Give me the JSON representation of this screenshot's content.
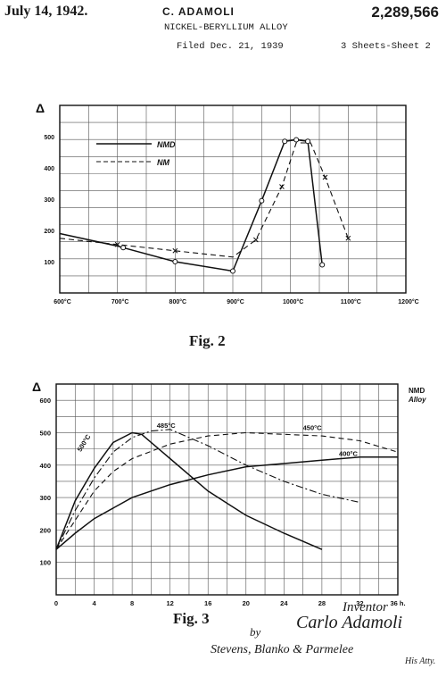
{
  "header": {
    "date": "July 14, 1942.",
    "inventor": "C. ADAMOLI",
    "patent_number": "2,289,566",
    "title": "NICKEL-BERYLLIUM ALLOY",
    "filed": "Filed Dec. 21, 1939",
    "sheets": "3 Sheets-Sheet 2"
  },
  "fig2_label": "Fig. 2",
  "fig3_label": "Fig. 3",
  "signature": {
    "inventor_label": "Inventor",
    "inventor_name": "Carlo Adamoli",
    "by": "by",
    "attorneys": "Stevens, Blanko & Parmelee",
    "his_atty": "His Atty."
  },
  "chart_data": [
    {
      "type": "line",
      "ylabel": "Δ",
      "xlim": [
        600,
        1200
      ],
      "ylim": [
        0,
        600
      ],
      "x_ticks": [
        600,
        700,
        800,
        900,
        1000,
        1100,
        1200
      ],
      "x_tick_labels": [
        "600°C",
        "700°C",
        "800°C",
        "900°C",
        "1000°C",
        "1100°C",
        "1200°C"
      ],
      "y_ticks": [
        100,
        200,
        300,
        400,
        500
      ],
      "y_tick_labels": [
        "100",
        "200",
        "300",
        "400",
        "500"
      ],
      "grid": true,
      "legend_position": "upper-left",
      "series": [
        {
          "name": "NMD",
          "style": "solid",
          "marker": "circle",
          "points": [
            [
              600,
              190
            ],
            [
              700,
              150
            ],
            [
              710,
              145
            ],
            [
              800,
              100
            ],
            [
              900,
              70
            ],
            [
              950,
              295
            ],
            [
              990,
              485
            ],
            [
              1010,
              490
            ],
            [
              1030,
              485
            ],
            [
              1055,
              90
            ]
          ],
          "marker_points": [
            [
              710,
              145
            ],
            [
              800,
              100
            ],
            [
              900,
              70
            ],
            [
              950,
              295
            ],
            [
              990,
              485
            ],
            [
              1010,
              490
            ],
            [
              1030,
              485
            ],
            [
              1055,
              90
            ]
          ]
        },
        {
          "name": "NM",
          "style": "dashed",
          "marker": "cross",
          "points": [
            [
              600,
              175
            ],
            [
              700,
              155
            ],
            [
              800,
              135
            ],
            [
              900,
              115
            ],
            [
              940,
              170
            ],
            [
              985,
              340
            ],
            [
              1010,
              480
            ],
            [
              1035,
              480
            ],
            [
              1060,
              370
            ],
            [
              1100,
              175
            ]
          ],
          "marker_points": [
            [
              700,
              155
            ],
            [
              800,
              135
            ],
            [
              940,
              170
            ],
            [
              985,
              340
            ],
            [
              1060,
              370
            ],
            [
              1100,
              175
            ]
          ]
        }
      ]
    },
    {
      "type": "line",
      "ylabel": "Δ",
      "xlim": [
        0,
        36
      ],
      "ylim": [
        0,
        650
      ],
      "x_ticks": [
        0,
        4,
        8,
        12,
        16,
        20,
        24,
        28,
        32,
        36
      ],
      "x_tick_labels": [
        "0",
        "4",
        "8",
        "12",
        "16",
        "20",
        "24",
        "28",
        "32",
        "36 h."
      ],
      "y_ticks": [
        100,
        200,
        300,
        400,
        500,
        600
      ],
      "y_tick_labels": [
        "100",
        "200",
        "300",
        "400",
        "500",
        "600"
      ],
      "grid": true,
      "corner_label": "NMD",
      "corner_label_sub": "Alloy",
      "series": [
        {
          "name": "500°C",
          "style": "solid",
          "points": [
            [
              0,
              140
            ],
            [
              2,
              290
            ],
            [
              4,
              390
            ],
            [
              6,
              470
            ],
            [
              8,
              500
            ],
            [
              9,
              495
            ],
            [
              12,
              420
            ],
            [
              16,
              320
            ],
            [
              20,
              245
            ],
            [
              24,
              190
            ],
            [
              28,
              140
            ]
          ]
        },
        {
          "name": "485°C",
          "style": "dash-dot",
          "points": [
            [
              0,
              140
            ],
            [
              2,
              260
            ],
            [
              4,
              360
            ],
            [
              6,
              440
            ],
            [
              8,
              485
            ],
            [
              10,
              505
            ],
            [
              12,
              510
            ],
            [
              16,
              460
            ],
            [
              20,
              400
            ],
            [
              24,
              350
            ],
            [
              28,
              310
            ],
            [
              32,
              285
            ]
          ]
        },
        {
          "name": "450°C",
          "style": "dashed",
          "points": [
            [
              0,
              140
            ],
            [
              2,
              230
            ],
            [
              4,
              320
            ],
            [
              6,
              380
            ],
            [
              8,
              420
            ],
            [
              12,
              465
            ],
            [
              16,
              490
            ],
            [
              20,
              500
            ],
            [
              24,
              495
            ],
            [
              28,
              490
            ],
            [
              32,
              475
            ],
            [
              36,
              440
            ]
          ]
        },
        {
          "name": "400°C",
          "style": "solid",
          "points": [
            [
              0,
              140
            ],
            [
              2,
              190
            ],
            [
              4,
              235
            ],
            [
              8,
              300
            ],
            [
              12,
              340
            ],
            [
              16,
              370
            ],
            [
              20,
              395
            ],
            [
              24,
              405
            ],
            [
              28,
              415
            ],
            [
              32,
              425
            ],
            [
              36,
              425
            ]
          ]
        }
      ],
      "curve_labels": [
        "500°C",
        "485°C",
        "450°C",
        "400°C"
      ]
    }
  ]
}
